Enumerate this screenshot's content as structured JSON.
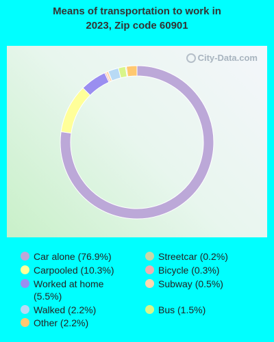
{
  "title_line1": "Means of transportation to work in",
  "title_line2": "2023, Zip code 60901",
  "watermark": "City-Data.com",
  "chart_data": {
    "type": "pie",
    "donut": true,
    "title": "Means of transportation to work in 2023, Zip code 60901",
    "series": [
      {
        "name": "Car alone",
        "value": 76.9,
        "label": "Car alone (76.9%)",
        "color": "#bca8d8"
      },
      {
        "name": "Carpooled",
        "value": 10.3,
        "label": "Carpooled (10.3%)",
        "color": "#ffff99"
      },
      {
        "name": "Worked at home",
        "value": 5.5,
        "label": "Worked at home (5.5%)",
        "color": "#9a8ef0"
      },
      {
        "name": "Walked",
        "value": 2.2,
        "label": "Walked (2.2%)",
        "color": "#b8daf5"
      },
      {
        "name": "Other",
        "value": 2.2,
        "label": "Other (2.2%)",
        "color": "#ffc870"
      },
      {
        "name": "Streetcar",
        "value": 0.2,
        "label": "Streetcar (0.2%)",
        "color": "#c8d8a8"
      },
      {
        "name": "Bicycle",
        "value": 0.3,
        "label": "Bicycle (0.3%)",
        "color": "#f0b0b0"
      },
      {
        "name": "Subway",
        "value": 0.5,
        "label": "Subway (0.5%)",
        "color": "#ffd8b0"
      },
      {
        "name": "Bus",
        "value": 1.5,
        "label": "Bus (1.5%)",
        "color": "#d8f58a"
      }
    ],
    "slice_order": [
      "Car alone",
      "Carpooled",
      "Worked at home",
      "Bicycle",
      "Subway",
      "Walked",
      "Bus",
      "Streetcar",
      "Other"
    ],
    "legend_position": "bottom"
  }
}
